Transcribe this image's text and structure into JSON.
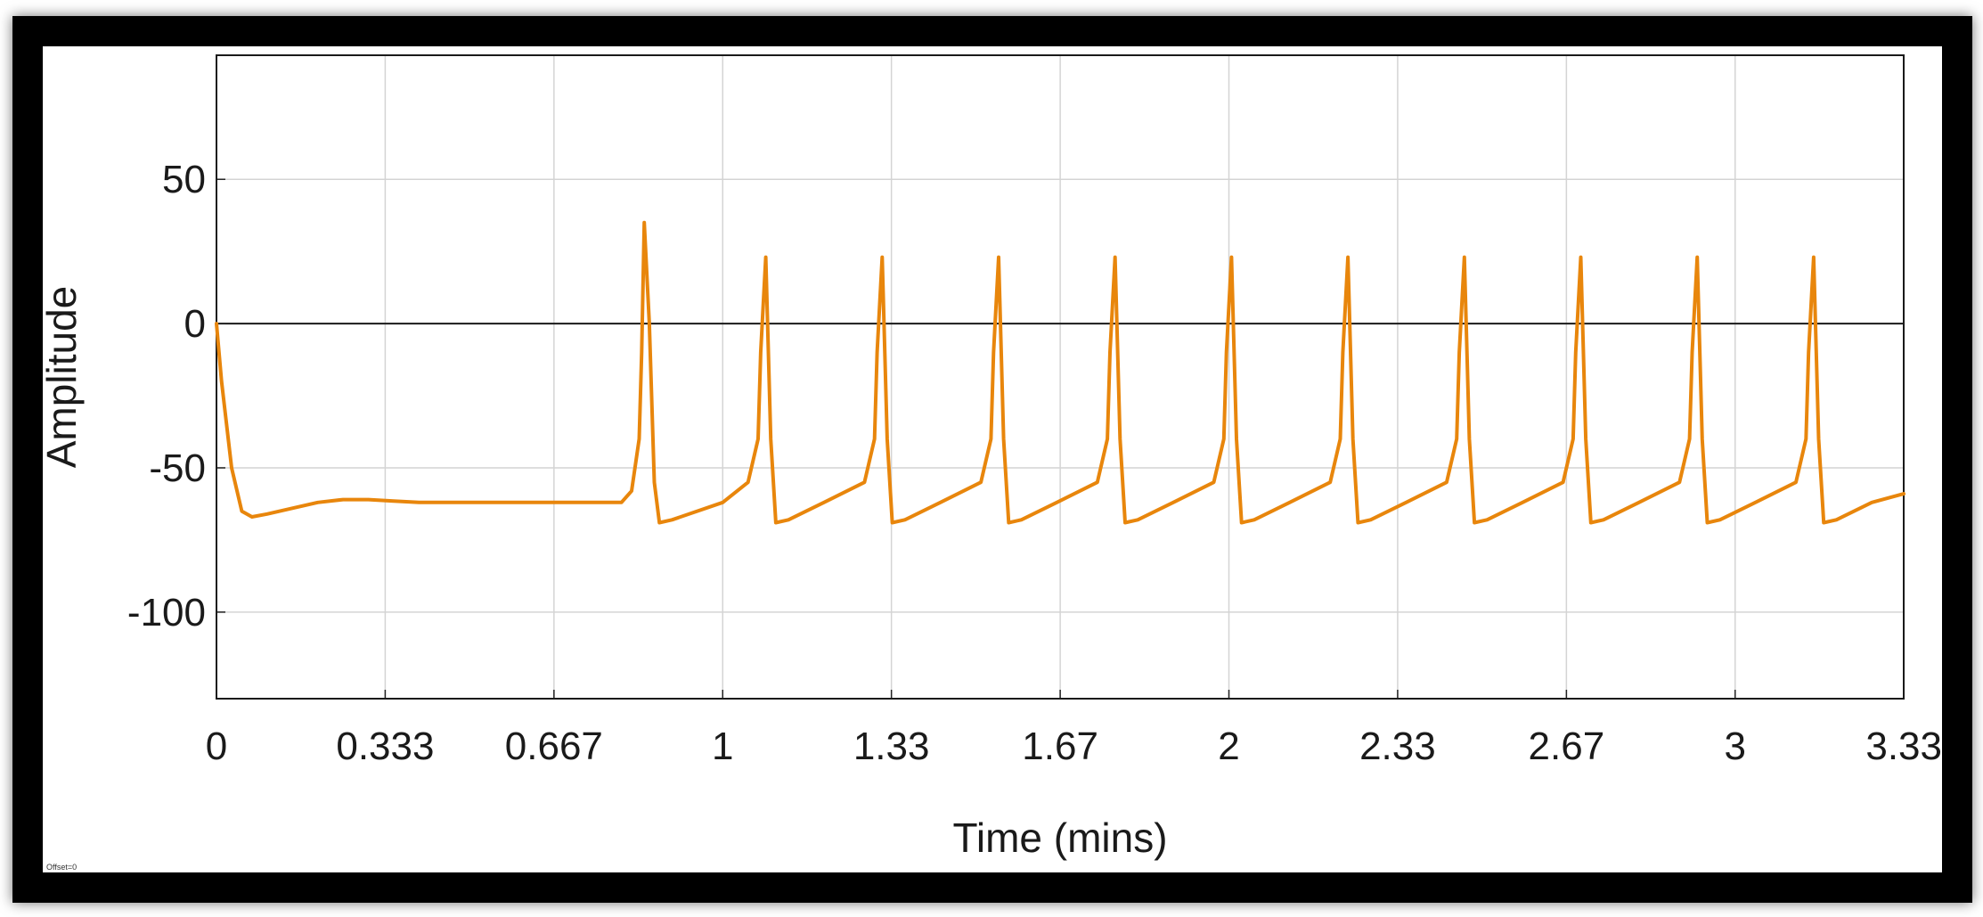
{
  "chart_data": {
    "type": "line",
    "title": "",
    "xlabel": "Time (mins)",
    "ylabel": "Amplitude",
    "xlim": [
      0,
      3.333
    ],
    "ylim": [
      -130,
      93
    ],
    "x_ticks": [
      {
        "value": 0,
        "label": "0"
      },
      {
        "value": 0.3333,
        "label": "0.333"
      },
      {
        "value": 0.6667,
        "label": "0.667"
      },
      {
        "value": 1,
        "label": "1"
      },
      {
        "value": 1.3333,
        "label": "1.33"
      },
      {
        "value": 1.6667,
        "label": "1.67"
      },
      {
        "value": 2,
        "label": "2"
      },
      {
        "value": 2.3333,
        "label": "2.33"
      },
      {
        "value": 2.6667,
        "label": "2.67"
      },
      {
        "value": 3,
        "label": "3"
      },
      {
        "value": 3.3333,
        "label": "3.33"
      }
    ],
    "y_ticks": [
      {
        "value": 50,
        "label": "50"
      },
      {
        "value": 0,
        "label": "0"
      },
      {
        "value": -50,
        "label": "-50"
      },
      {
        "value": -100,
        "label": "-100"
      }
    ],
    "grid": true,
    "line_color": "#e8860c",
    "series": [
      {
        "name": "",
        "x": [
          0,
          0.01,
          0.03,
          0.05,
          0.07,
          0.1,
          0.15,
          0.2,
          0.25,
          0.3,
          0.35,
          0.4,
          0.5,
          0.6,
          0.7,
          0.8,
          0.82,
          0.835,
          0.84,
          0.845,
          0.855,
          0.865,
          0.875,
          0.9,
          1.0,
          1.05,
          1.07,
          1.075,
          1.085,
          1.095,
          1.105,
          1.13,
          1.2,
          1.28,
          1.3,
          1.305,
          1.315,
          1.325,
          1.335,
          1.36,
          1.43,
          1.51,
          1.53,
          1.535,
          1.545,
          1.555,
          1.565,
          1.59,
          1.66,
          1.74,
          1.76,
          1.765,
          1.775,
          1.785,
          1.795,
          1.82,
          1.89,
          1.97,
          1.99,
          1.995,
          2.005,
          2.015,
          2.025,
          2.05,
          2.12,
          2.2,
          2.22,
          2.225,
          2.235,
          2.245,
          2.255,
          2.28,
          2.35,
          2.43,
          2.45,
          2.455,
          2.465,
          2.475,
          2.485,
          2.51,
          2.58,
          2.66,
          2.68,
          2.685,
          2.695,
          2.705,
          2.715,
          2.74,
          2.81,
          2.89,
          2.91,
          2.915,
          2.925,
          2.935,
          2.945,
          2.97,
          3.04,
          3.12,
          3.14,
          3.145,
          3.155,
          3.165,
          3.175,
          3.2,
          3.27,
          3.333
        ],
        "y": [
          0,
          -20,
          -50,
          -65,
          -67,
          -66,
          -64,
          -62,
          -61,
          -61,
          -61.5,
          -62,
          -62,
          -62,
          -62,
          -62,
          -58,
          -40,
          -10,
          35,
          0,
          -55,
          -69,
          -68,
          -62,
          -55,
          -40,
          -10,
          23,
          -40,
          -69,
          -68,
          -62,
          -55,
          -40,
          -10,
          23,
          -40,
          -69,
          -68,
          -62,
          -55,
          -40,
          -10,
          23,
          -40,
          -69,
          -68,
          -62,
          -55,
          -40,
          -10,
          23,
          -40,
          -69,
          -68,
          -62,
          -55,
          -40,
          -10,
          23,
          -40,
          -69,
          -68,
          -62,
          -55,
          -40,
          -10,
          23,
          -40,
          -69,
          -68,
          -62,
          -55,
          -40,
          -10,
          23,
          -40,
          -69,
          -68,
          -62,
          -55,
          -40,
          -10,
          23,
          -40,
          -69,
          -68,
          -62,
          -55,
          -40,
          -10,
          23,
          -40,
          -69,
          -68,
          -62,
          -55,
          -40,
          -10,
          23,
          -40,
          -69,
          -68,
          -62,
          -59
        ]
      }
    ]
  },
  "footer_note": "Offset=0"
}
